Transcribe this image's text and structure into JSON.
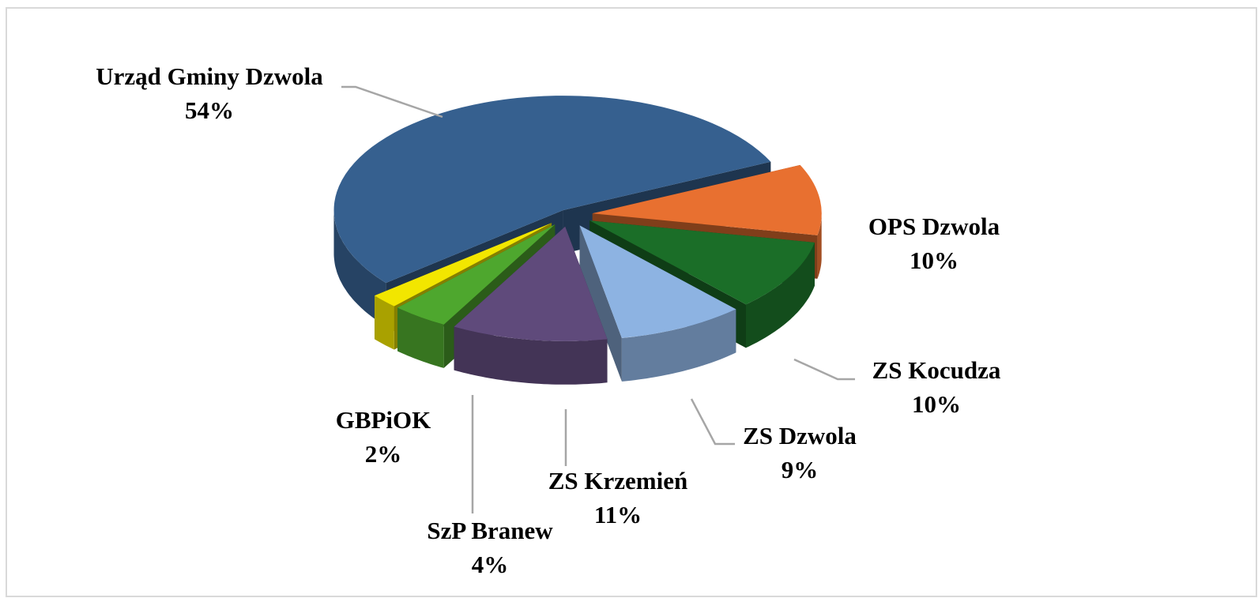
{
  "chart_data": {
    "type": "pie3d",
    "categories": [
      "Urząd Gminy Dzwola",
      "OPS Dzwola",
      "ZS Kocudza",
      "ZS Dzwola",
      "ZS Krzemień",
      "SzP Branew",
      "GBPiOK"
    ],
    "values": [
      54,
      10,
      10,
      9,
      11,
      4,
      2
    ],
    "value_labels": [
      "54%",
      "10%",
      "10%",
      "9%",
      "11%",
      "4%",
      "2%"
    ],
    "colors": [
      "#36608f",
      "#e87030",
      "#1b6e28",
      "#8db3e2",
      "#5f4a7b",
      "#4ea72e",
      "#f2e600"
    ]
  }
}
